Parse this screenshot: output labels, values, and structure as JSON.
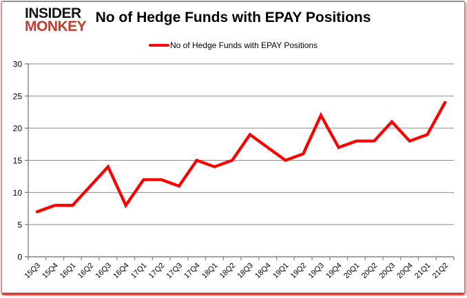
{
  "branding": {
    "logo_top": "INSIDER",
    "logo_bottom": "MONKEY",
    "logo_top_color": "#141414",
    "logo_bottom_color": "#c43b2d"
  },
  "header": {
    "title": "No of Hedge Funds with EPAY Positions"
  },
  "legend": {
    "label": "No of Hedge Funds with EPAY Positions",
    "swatch_color": "#ff0000"
  },
  "chart_data": {
    "type": "line",
    "title": "No of Hedge Funds with EPAY Positions",
    "categories": [
      "15Q3",
      "15Q4",
      "16Q1",
      "16Q2",
      "16Q3",
      "16Q4",
      "17Q1",
      "17Q2",
      "17Q3",
      "17Q4",
      "18Q1",
      "18Q2",
      "18Q3",
      "18Q4",
      "19Q1",
      "19Q2",
      "19Q3",
      "19Q4",
      "20Q1",
      "20Q2",
      "20Q3",
      "20Q4",
      "21Q1",
      "21Q2"
    ],
    "series": [
      {
        "name": "No of Hedge Funds with EPAY Positions",
        "color": "#ff0000",
        "values": [
          7,
          8,
          8,
          11,
          14,
          8,
          12,
          12,
          11,
          15,
          14,
          15,
          19,
          17,
          15,
          16,
          22,
          17,
          18,
          18,
          21,
          18,
          19,
          24
        ]
      }
    ],
    "xlabel": "",
    "ylabel": "",
    "ylim": [
      0,
      30
    ],
    "yticks": [
      0,
      5,
      10,
      15,
      20,
      25,
      30
    ],
    "grid": true,
    "legend_position": "top",
    "gridline_color": "#898989",
    "axis_color": "#808080",
    "tick_label_color": "#000000"
  }
}
